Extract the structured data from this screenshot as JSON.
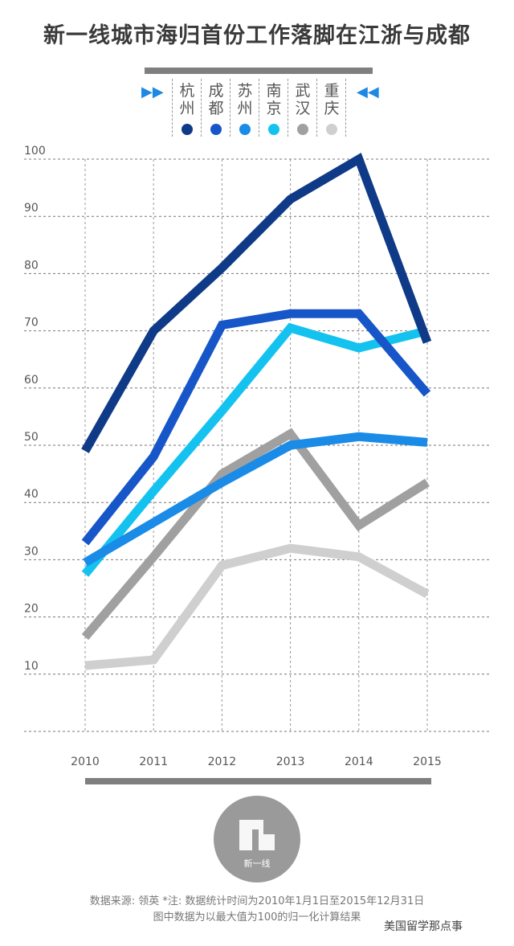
{
  "title": "新一线城市海归首份工作落脚在江浙与成都",
  "legend": {
    "arrow_left": "▶▶",
    "arrow_right": "◀◀",
    "items": [
      {
        "label": "杭州",
        "color": "#0f3a87"
      },
      {
        "label": "成都",
        "color": "#1756c8"
      },
      {
        "label": "苏州",
        "color": "#1a8be6"
      },
      {
        "label": "南京",
        "color": "#14c2f0"
      },
      {
        "label": "武汉",
        "color": "#a0a0a0"
      },
      {
        "label": "重庆",
        "color": "#cfcfcf"
      }
    ]
  },
  "chart_data": {
    "type": "line",
    "x": [
      "2010",
      "2011",
      "2012",
      "2013",
      "2014",
      "2015"
    ],
    "ylim": [
      0,
      100
    ],
    "yticks": [
      10,
      20,
      30,
      40,
      50,
      60,
      70,
      80,
      90,
      100
    ],
    "grid": true,
    "series": [
      {
        "name": "杭州",
        "color": "#0f3a87",
        "values": [
          49,
          70,
          81,
          93,
          100,
          68
        ]
      },
      {
        "name": "成都",
        "color": "#1756c8",
        "values": [
          33,
          48,
          71,
          73,
          73,
          59
        ]
      },
      {
        "name": "苏州",
        "color": "#1a8be6",
        "values": [
          29.5,
          36.5,
          43.5,
          50,
          51.5,
          50.5
        ]
      },
      {
        "name": "南京",
        "color": "#14c2f0",
        "values": [
          27.5,
          42,
          56,
          70.5,
          67,
          70
        ]
      },
      {
        "name": "武汉",
        "color": "#a0a0a0",
        "values": [
          16.5,
          30.5,
          45,
          52,
          36,
          43.5
        ]
      },
      {
        "name": "重庆",
        "color": "#cfcfcf",
        "values": [
          11.5,
          12.5,
          29,
          32,
          30.5,
          24
        ]
      }
    ]
  },
  "logo": {
    "text": "新一线"
  },
  "source": {
    "line1": "数据来源: 领英   *注: 数据统计时间为2010年1月1日至2015年12月31日",
    "line2": "图中数据为以最大值为100的归一化计算结果"
  },
  "watermark": "美国留学那点事"
}
